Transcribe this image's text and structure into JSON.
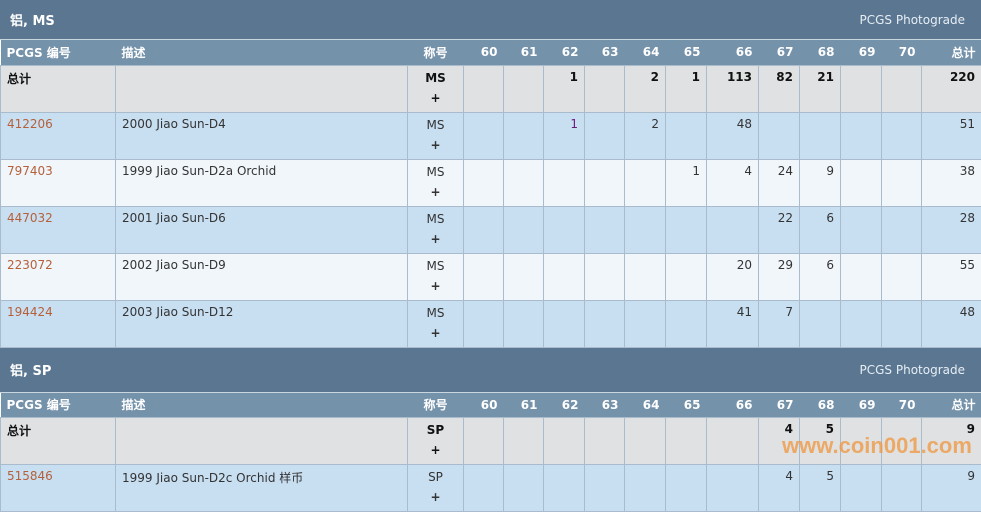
{
  "columns": [
    "PCGS 编号",
    "描述",
    "称号",
    "60",
    "61",
    "62",
    "63",
    "64",
    "65",
    "66",
    "67",
    "68",
    "69",
    "70",
    "总计"
  ],
  "sections": [
    {
      "title": "铝, MS",
      "photograde": "PCGS Photograde",
      "total": {
        "label": "总计",
        "desig": "MS",
        "plus": "+",
        "grades": [
          "",
          "",
          "1",
          "",
          "2",
          "1",
          "113",
          "82",
          "21",
          "",
          ""
        ],
        "sum": "220"
      },
      "rows": [
        {
          "id": "412206",
          "desc": "2000 Jiao Sun-D4",
          "desig": "MS",
          "plus": "+",
          "grades": [
            "",
            "",
            "1",
            "",
            "2",
            "",
            "48",
            "",
            "",
            "",
            ""
          ],
          "sum": "51"
        },
        {
          "id": "797403",
          "desc": "1999 Jiao Sun-D2a Orchid",
          "desig": "MS",
          "plus": "+",
          "grades": [
            "",
            "",
            "",
            "",
            "",
            "1",
            "4",
            "24",
            "9",
            "",
            ""
          ],
          "sum": "38"
        },
        {
          "id": "447032",
          "desc": "2001 Jiao Sun-D6",
          "desig": "MS",
          "plus": "+",
          "grades": [
            "",
            "",
            "",
            "",
            "",
            "",
            "",
            "22",
            "6",
            "",
            ""
          ],
          "sum": "28"
        },
        {
          "id": "223072",
          "desc": "2002 Jiao Sun-D9",
          "desig": "MS",
          "plus": "+",
          "grades": [
            "",
            "",
            "",
            "",
            "",
            "",
            "20",
            "29",
            "6",
            "",
            ""
          ],
          "sum": "55"
        },
        {
          "id": "194424",
          "desc": "2003 Jiao Sun-D12",
          "desig": "MS",
          "plus": "+",
          "grades": [
            "",
            "",
            "",
            "",
            "",
            "",
            "41",
            "7",
            "",
            "",
            ""
          ],
          "sum": "48"
        }
      ]
    },
    {
      "title": "铝, SP",
      "photograde": "PCGS Photograde",
      "total": {
        "label": "总计",
        "desig": "SP",
        "plus": "+",
        "grades": [
          "",
          "",
          "",
          "",
          "",
          "",
          "",
          "4",
          "5",
          "",
          ""
        ],
        "sum": "9"
      },
      "rows": [
        {
          "id": "515846",
          "desc": "1999 Jiao Sun-D2c Orchid 样币",
          "desig": "SP",
          "plus": "+",
          "grades": [
            "",
            "",
            "",
            "",
            "",
            "",
            "",
            "4",
            "5",
            "",
            ""
          ],
          "sum": "9"
        }
      ]
    }
  ],
  "watermark": "www.coin001.com",
  "colors": {
    "title_bg": "#5b7690",
    "header_bg": "#7592ab",
    "link": "#b5603a",
    "row_odd": "#c8dff2",
    "row_even": "#f1f6fb",
    "total_bg": "#e0e1e3"
  }
}
